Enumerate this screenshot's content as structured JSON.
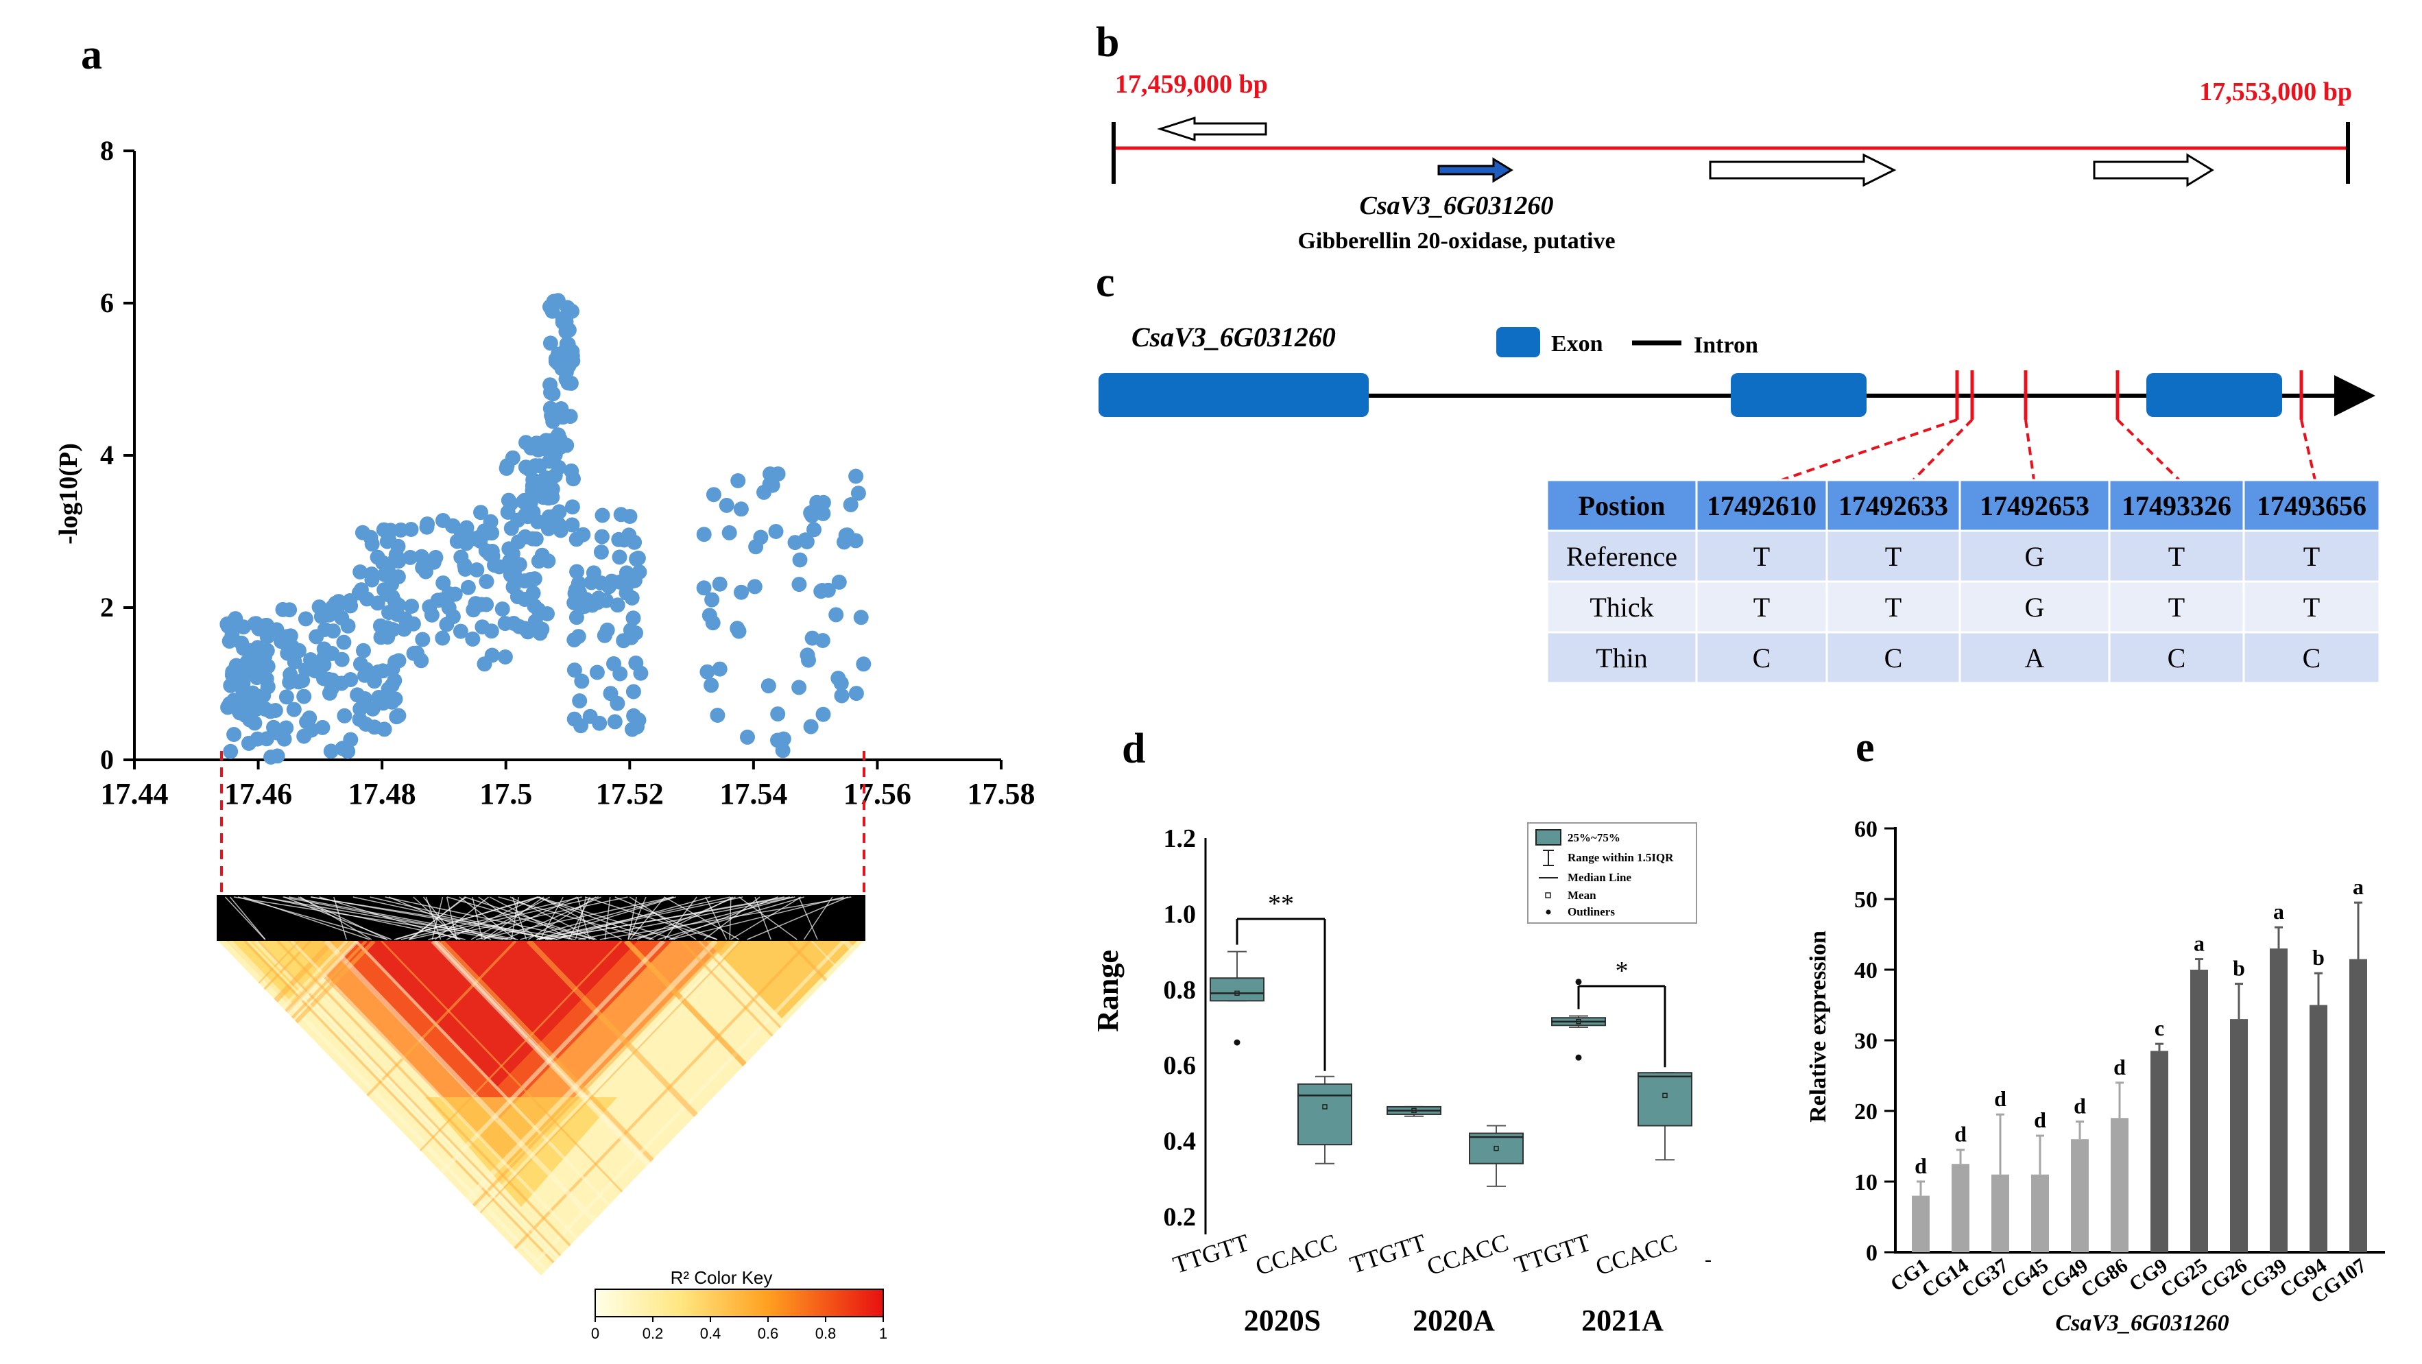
{
  "colors": {
    "blue": "#5b9bd5",
    "teal": "#5f9595",
    "red": "#e8111c",
    "gene_blue": "#0e6ec3",
    "bar_light": "#a6a6a6",
    "bar_dark": "#5b5b5b",
    "header_blue": "#5b95e5",
    "row_alt1": "#d3def4",
    "row_alt2": "#e9eef9"
  },
  "panel_labels": {
    "a": "a",
    "b": "b",
    "c": "c",
    "d": "d",
    "e": "e"
  },
  "chart_data": [
    {
      "id": "a",
      "type": "scatter",
      "title": "",
      "xlabel": "",
      "ylabel": "-log10(P)",
      "xlim": [
        17.44,
        17.58
      ],
      "ylim": [
        0,
        8
      ],
      "xticks": [
        "17.44",
        "17.46",
        "17.48",
        "17.5",
        "17.52",
        "17.54",
        "17.56",
        "17.58"
      ],
      "yticks": [
        "0",
        "2",
        "4",
        "6",
        "8"
      ],
      "clusters": [
        {
          "x": [
            17.455,
            17.462
          ],
          "y": [
            0.1,
            1.9
          ]
        },
        {
          "x": [
            17.462,
            17.475
          ],
          "y": [
            0.0,
            2.1
          ]
        },
        {
          "x": [
            17.476,
            17.483
          ],
          "y": [
            0.3,
            3.1
          ]
        },
        {
          "x": [
            17.483,
            17.5
          ],
          "y": [
            1.2,
            3.3
          ]
        },
        {
          "x": [
            17.5,
            17.507
          ],
          "y": [
            1.6,
            4.2
          ]
        },
        {
          "x": [
            17.507,
            17.511
          ],
          "y": [
            3.0,
            6.1
          ]
        },
        {
          "x": [
            17.511,
            17.522
          ],
          "y": [
            0.3,
            3.3
          ]
        },
        {
          "x": [
            17.532,
            17.558
          ],
          "y": [
            0.0,
            3.8
          ]
        }
      ],
      "ld_color_key": {
        "title": "R² Color Key",
        "ticks": [
          "0",
          "0.2",
          "0.4",
          "0.6",
          "0.8",
          "1"
        ]
      }
    },
    {
      "id": "d",
      "type": "box",
      "ylabel": "Range",
      "ylim": [
        0.15,
        1.2
      ],
      "yticks": [
        "0.2",
        "0.4",
        "0.6",
        "0.8",
        "1.0",
        "1.2"
      ],
      "groups": [
        "2020S",
        "2020A",
        "2021A"
      ],
      "categories": [
        "TTGTT",
        "CCACC",
        "TTGTT",
        "CCACC",
        "TTGTT",
        "CCACC"
      ],
      "boxes": [
        {
          "q1": 0.77,
          "median": 0.79,
          "q3": 0.83,
          "whisker_low": 0.77,
          "whisker_high": 0.9,
          "mean": 0.79,
          "outliers": [
            0.66
          ]
        },
        {
          "q1": 0.39,
          "median": 0.52,
          "q3": 0.55,
          "whisker_low": 0.34,
          "whisker_high": 0.57,
          "mean": 0.49,
          "outliers": []
        },
        {
          "q1": 0.47,
          "median": 0.48,
          "q3": 0.49,
          "whisker_low": 0.465,
          "whisker_high": 0.49,
          "mean": 0.48,
          "outliers": []
        },
        {
          "q1": 0.34,
          "median": 0.41,
          "q3": 0.42,
          "whisker_low": 0.28,
          "whisker_high": 0.44,
          "mean": 0.38,
          "outliers": []
        },
        {
          "q1": 0.705,
          "median": 0.715,
          "q3": 0.725,
          "whisker_low": 0.7,
          "whisker_high": 0.73,
          "mean": 0.715,
          "outliers": [
            0.82,
            0.62
          ]
        },
        {
          "q1": 0.44,
          "median": 0.57,
          "q3": 0.58,
          "whisker_low": 0.35,
          "whisker_high": 0.58,
          "mean": 0.52,
          "outliers": []
        }
      ],
      "significance": [
        {
          "between": [
            0,
            1
          ],
          "label": "**"
        },
        {
          "between": [
            4,
            5
          ],
          "label": "*"
        }
      ],
      "legend": [
        "25%~75%",
        "Range within 1.5IQR",
        "Median Line",
        "Mean",
        "Outliners"
      ]
    },
    {
      "id": "e",
      "type": "bar",
      "ylabel": "Relative expression",
      "xlabel": "CsaV3_6G031260",
      "ylim": [
        0,
        60
      ],
      "yticks": [
        "0",
        "10",
        "20",
        "30",
        "40",
        "50",
        "60"
      ],
      "categories": [
        "CG1",
        "CG14",
        "CG37",
        "CG45",
        "CG49",
        "CG86",
        "CG9",
        "CG25",
        "CG26",
        "CG39",
        "CG94",
        "CG107"
      ],
      "values": [
        8,
        12.5,
        11,
        11,
        16,
        19,
        28.5,
        40,
        33,
        43,
        35,
        41.5
      ],
      "errors": [
        2,
        2,
        8.5,
        5.5,
        2.5,
        5,
        1,
        1.5,
        5,
        3,
        4.5,
        8
      ],
      "letters": [
        "d",
        "d",
        "d",
        "d",
        "d",
        "d",
        "c",
        "a",
        "b",
        "a",
        "b",
        "a"
      ],
      "group": [
        "light",
        "light",
        "light",
        "light",
        "light",
        "light",
        "dark",
        "dark",
        "dark",
        "dark",
        "dark",
        "dark"
      ]
    }
  ],
  "panel_b": {
    "left_pos": "17,459,000 bp",
    "right_pos": "17,553,000 bp",
    "gene_name": "CsaV3_6G031260",
    "gene_desc": "Gibberellin 20-oxidase, putative"
  },
  "panel_c": {
    "gene_name": "CsaV3_6G031260",
    "legend_exon": "Exon",
    "legend_intron": "Intron",
    "table": {
      "header": [
        "Postion",
        "17492610",
        "17492633",
        "17492653",
        "17493326",
        "17493656"
      ],
      "rows": [
        [
          "Reference",
          "T",
          "T",
          "G",
          "T",
          "T"
        ],
        [
          "Thick",
          "T",
          "T",
          "G",
          "T",
          "T"
        ],
        [
          "Thin",
          "C",
          "C",
          "A",
          "C",
          "C"
        ]
      ]
    }
  }
}
